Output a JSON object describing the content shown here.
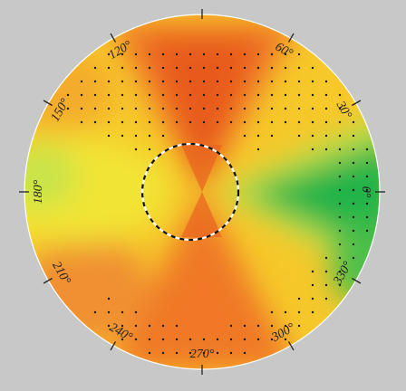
{
  "plot": {
    "type": "polar-color-map",
    "angle_labels": [
      {
        "angle": 0,
        "text": "0°"
      },
      {
        "angle": 30,
        "text": "30°"
      },
      {
        "angle": 60,
        "text": "60°"
      },
      {
        "angle": 120,
        "text": "120°"
      },
      {
        "angle": 150,
        "text": "150°"
      },
      {
        "angle": 180,
        "text": "180°"
      },
      {
        "angle": 210,
        "text": "210°"
      },
      {
        "angle": 240,
        "text": "240°"
      },
      {
        "angle": 270,
        "text": "270°"
      },
      {
        "angle": 300,
        "text": "300°"
      },
      {
        "angle": 330,
        "text": "330°"
      }
    ],
    "colors": {
      "background": "#c8c8c8",
      "orange": "#f07828",
      "deep_orange": "#e85a1a",
      "yellow": "#f6dc20",
      "light_green": "#b8e050",
      "green": "#22b44a"
    },
    "has_dashed_inner_circle": true,
    "has_dot_markers": true
  }
}
